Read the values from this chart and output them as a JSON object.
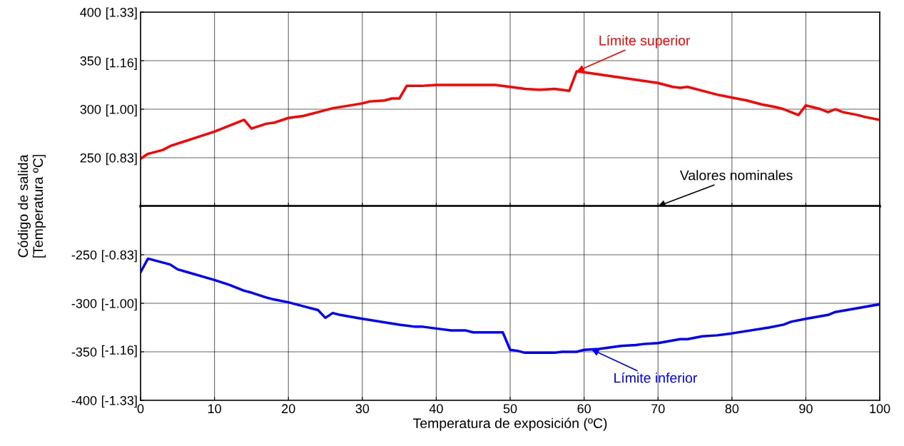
{
  "chart_data": [
    {
      "type": "line",
      "ylabel": "Código de salida\n[Temperatura ºC]",
      "xlim": [
        0,
        100
      ],
      "xticks": [
        0,
        10,
        20,
        30,
        40,
        50,
        60,
        70,
        80,
        90,
        100
      ],
      "ylim": [
        200,
        400
      ],
      "yticks": [
        400,
        350,
        300,
        250,
        {
          "value": 200,
          "label": null
        }
      ],
      "y2lim": [
        0.6667,
        1.3333
      ],
      "y2ticks": [
        {
          "value": 1.3333,
          "label": "[1.33]"
        },
        {
          "value": 1.16,
          "label": "[1.16]"
        },
        {
          "value": 1.0,
          "label": "[1.00]"
        },
        {
          "value": 0.8333,
          "label": "[0.83]"
        }
      ],
      "tick_labels": "y",
      "grid": true,
      "marker": "none",
      "line_style": "solid",
      "series": [
        {
          "color": "#ff0000",
          "x": [
            0,
            1,
            3,
            4,
            8,
            10,
            14,
            15,
            17,
            18,
            20,
            22,
            24,
            26,
            30,
            31,
            33,
            34,
            35,
            36,
            38,
            40,
            48,
            50,
            52,
            54,
            56,
            58,
            59,
            60,
            70,
            72,
            73,
            74,
            76,
            78,
            80,
            82,
            84,
            86,
            87,
            88,
            89,
            90,
            92,
            93,
            94,
            95,
            97,
            98,
            100
          ],
          "values": [
            249,
            254,
            258,
            262,
            272,
            277,
            289,
            280,
            285,
            286,
            291,
            293,
            297,
            301,
            306,
            308,
            309,
            311,
            311,
            324,
            324,
            325,
            325,
            323,
            321,
            320,
            321,
            319,
            339,
            338,
            327,
            323,
            322,
            323,
            319,
            315,
            312,
            309,
            305,
            302,
            300,
            297,
            294,
            304,
            300,
            297,
            300,
            297,
            294,
            292,
            289
          ]
        }
      ],
      "ref_lines": [
        {
          "axis": "y",
          "value": 200,
          "color": "#000000"
        }
      ],
      "annotations": [
        {
          "text": "Límite superior",
          "x": 59,
          "y": 339
        },
        {
          "text": "Valores nominales",
          "x": 70,
          "y": 200
        }
      ]
    },
    {
      "type": "line",
      "xlabel": "Temperatura de exposición (ºC)",
      "xlim": [
        0,
        100
      ],
      "xticks": [
        0,
        10,
        20,
        30,
        40,
        50,
        60,
        70,
        80,
        90,
        100
      ],
      "ylim": [
        -400,
        -200
      ],
      "yticks": [
        {
          "value": -200,
          "label": null
        },
        -250,
        -300,
        -350,
        -400
      ],
      "y2lim": [
        -1.3333,
        -0.6667
      ],
      "y2ticks": [
        {
          "value": -0.8333,
          "label": "[-0.83]"
        },
        {
          "value": -1.0,
          "label": "[-1.00]"
        },
        {
          "value": -1.16,
          "label": "[-1.16]"
        },
        {
          "value": -1.3333,
          "label": "[-1.33]"
        }
      ],
      "grid": true,
      "marker": "none",
      "line_style": "solid",
      "series": [
        {
          "color": "#0000ff",
          "x": [
            0,
            1,
            4,
            5,
            10,
            12,
            14,
            15,
            17,
            18,
            20,
            22,
            24,
            25,
            26,
            27,
            30,
            35,
            37,
            38,
            40,
            42,
            44,
            45,
            48,
            49,
            50,
            51,
            52,
            56,
            57,
            59,
            60,
            62,
            65,
            67,
            68,
            70,
            73,
            74,
            76,
            78,
            80,
            85,
            87,
            88,
            90,
            93,
            94,
            100
          ],
          "values": [
            -268,
            -254,
            -260,
            -265,
            -276,
            -281,
            -287,
            -289,
            -294,
            -296,
            -299,
            -303,
            -307,
            -315,
            -310,
            -312,
            -316,
            -322,
            -324,
            -324,
            -326,
            -328,
            -328,
            -330,
            -330,
            -330,
            -348,
            -349,
            -351,
            -351,
            -350,
            -350,
            -348,
            -347,
            -344,
            -343,
            -342,
            -341,
            -337,
            -337,
            -334,
            -333,
            -331,
            -325,
            -322,
            -319,
            -316,
            -312,
            -309,
            -301
          ]
        }
      ],
      "annotations": [
        {
          "text": "Límite inferior",
          "x": 61,
          "y": -347.5
        }
      ]
    }
  ]
}
